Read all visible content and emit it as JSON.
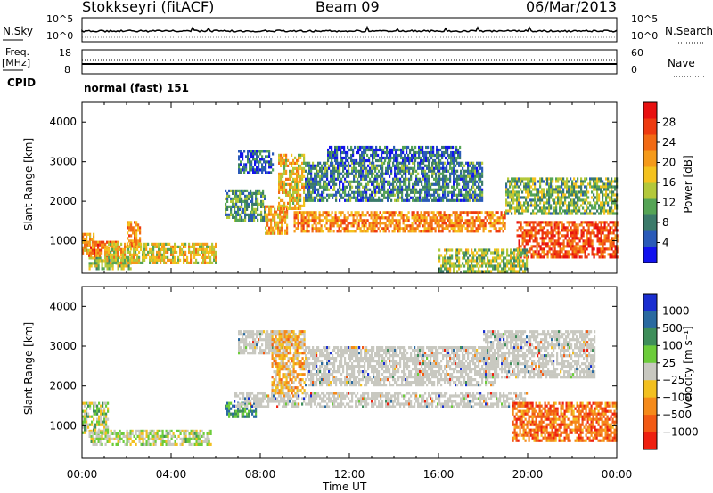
{
  "header": {
    "station": "Stokkseyri (fitACF)",
    "beam": "Beam 09",
    "date": "06/Mar/2013"
  },
  "nsky_panel": {
    "left_label": "N.Sky",
    "left_ticks": [
      "10^5",
      "10^0"
    ],
    "right_ticks": [
      "10^5",
      "10^0"
    ],
    "right_label": "N.Search"
  },
  "freq_panel": {
    "left_label_1": "Freq.",
    "left_label_2": "[MHz]",
    "left_ticks": [
      "18",
      "8"
    ],
    "right_ticks": [
      "60",
      "0"
    ],
    "right_label": "Nave"
  },
  "cpid_panel": {
    "label": "CPID",
    "value": "normal (fast) 151"
  },
  "chart_data": [
    {
      "type": "heatmap",
      "title": "",
      "quantity": "Power",
      "ylabel": "Slant Range [km]",
      "yticks": [
        1000,
        2000,
        3000,
        4000
      ],
      "ylim": [
        180,
        4500
      ],
      "xlim": [
        0,
        24
      ],
      "colorbar_label": "Power [dB]",
      "colorbar_ticks": [
        4,
        8,
        12,
        16,
        20,
        24,
        28
      ],
      "colorbar_range": [
        0,
        32
      ],
      "colors": [
        "#1212ee",
        "#2a5ab8",
        "#3b7a6a",
        "#55a455",
        "#b3c83a",
        "#f4c21e",
        "#f59a1a",
        "#f26a14",
        "#ee3a10",
        "#e81010"
      ],
      "regions": [
        {
          "t": [
            0.0,
            0.5
          ],
          "r": [
            700,
            1200
          ],
          "v": 20
        },
        {
          "t": [
            0.3,
            2.2
          ],
          "r": [
            300,
            600
          ],
          "v": 14
        },
        {
          "t": [
            0.2,
            1.6
          ],
          "r": [
            600,
            1000
          ],
          "v": 24
        },
        {
          "t": [
            2.0,
            2.6
          ],
          "r": [
            800,
            1500
          ],
          "v": 22
        },
        {
          "t": [
            1.0,
            6.0
          ],
          "r": [
            450,
            950
          ],
          "v": 17
        },
        {
          "t": [
            6.4,
            8.2
          ],
          "r": [
            1500,
            2300
          ],
          "v": 10
        },
        {
          "t": [
            7.0,
            8.6
          ],
          "r": [
            2700,
            3300
          ],
          "v": 6
        },
        {
          "t": [
            8.2,
            9.2
          ],
          "r": [
            1200,
            1900
          ],
          "v": 20
        },
        {
          "t": [
            8.8,
            10.0
          ],
          "r": [
            1800,
            3200
          ],
          "v": 18
        },
        {
          "t": [
            9.5,
            19.0
          ],
          "r": [
            1250,
            1750
          ],
          "v": 22
        },
        {
          "t": [
            10.0,
            18.0
          ],
          "r": [
            2000,
            3000
          ],
          "v": 8
        },
        {
          "t": [
            11.0,
            17.0
          ],
          "r": [
            3000,
            3400
          ],
          "v": 6
        },
        {
          "t": [
            19.5,
            24.0
          ],
          "r": [
            600,
            1500
          ],
          "v": 26
        },
        {
          "t": [
            19.0,
            24.0
          ],
          "r": [
            1700,
            2600
          ],
          "v": 12
        },
        {
          "t": [
            16.0,
            20.0
          ],
          "r": [
            200,
            800
          ],
          "v": 14
        }
      ]
    },
    {
      "type": "heatmap",
      "title": "",
      "quantity": "Velocity",
      "ylabel": "Slant Range [km]",
      "yticks": [
        1000,
        2000,
        3000,
        4000
      ],
      "ylim": [
        180,
        4500
      ],
      "xlim": [
        0,
        24
      ],
      "xticks": [
        "00:00",
        "04:00",
        "08:00",
        "12:00",
        "16:00",
        "20:00",
        "00:00"
      ],
      "xlabel": "Time UT",
      "colorbar_label": "Velocity [m s⁻¹]",
      "colorbar_ticks": [
        "1000",
        "500",
        "100",
        "25",
        "−25",
        "−100",
        "−500",
        "−1000"
      ],
      "colors": [
        "#1a2ed0",
        "#2a6aa0",
        "#3e8e5a",
        "#6ccc3a",
        "#c8c8c0",
        "#f2c020",
        "#f58a1a",
        "#f25a14",
        "#ee2010"
      ],
      "ground_scatter_color": "#c8c8c0",
      "regions": [
        {
          "t": [
            0.3,
            5.8
          ],
          "r": [
            500,
            900
          ],
          "v": 25
        },
        {
          "t": [
            0.0,
            1.2
          ],
          "r": [
            800,
            1600
          ],
          "v": 100
        },
        {
          "t": [
            6.4,
            7.8
          ],
          "r": [
            1200,
            1600
          ],
          "v": 500
        },
        {
          "t": [
            6.8,
            20.0
          ],
          "r": [
            1450,
            1850
          ],
          "v": 0
        },
        {
          "t": [
            7.0,
            9.5
          ],
          "r": [
            2800,
            3400
          ],
          "v": 0
        },
        {
          "t": [
            8.5,
            10.0
          ],
          "r": [
            1800,
            3400
          ],
          "v": -300
        },
        {
          "t": [
            10.0,
            18.5
          ],
          "r": [
            2000,
            3000
          ],
          "v": 0
        },
        {
          "t": [
            19.3,
            24.0
          ],
          "r": [
            600,
            1600
          ],
          "v": -700
        },
        {
          "t": [
            18.0,
            23.0
          ],
          "r": [
            2200,
            3400
          ],
          "v": 0
        }
      ]
    }
  ]
}
